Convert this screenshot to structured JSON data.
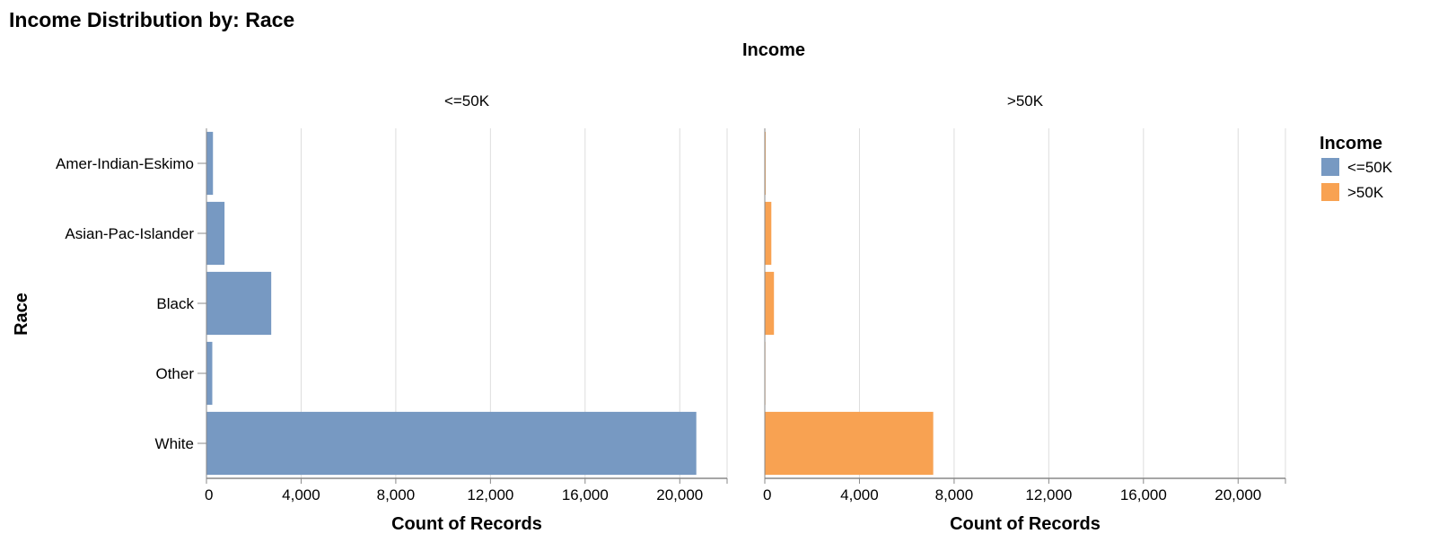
{
  "chart_data": {
    "type": "bar",
    "orientation": "horizontal",
    "faceted_by": "Income",
    "title": "Income Distribution by: Race",
    "column_title": "Income",
    "xlabel": "Count of Records",
    "ylabel": "Race",
    "xlim": [
      0,
      22000
    ],
    "x_ticks": [
      "0",
      "4,000",
      "8,000",
      "12,000",
      "16,000",
      "20,000"
    ],
    "grid": true,
    "categories": [
      "Amer-Indian-Eskimo",
      "Asian-Pac-Islander",
      "Black",
      "Other",
      "White"
    ],
    "series": [
      {
        "name": "<=50K",
        "color": "#7799c2",
        "values": [
          275,
          763,
          2737,
          246,
          20699
        ]
      },
      {
        "name": ">50K",
        "color": "#f8a252",
        "values": [
          36,
          276,
          387,
          25,
          7117
        ]
      }
    ],
    "legend": {
      "title": "Income",
      "position": "right"
    }
  }
}
